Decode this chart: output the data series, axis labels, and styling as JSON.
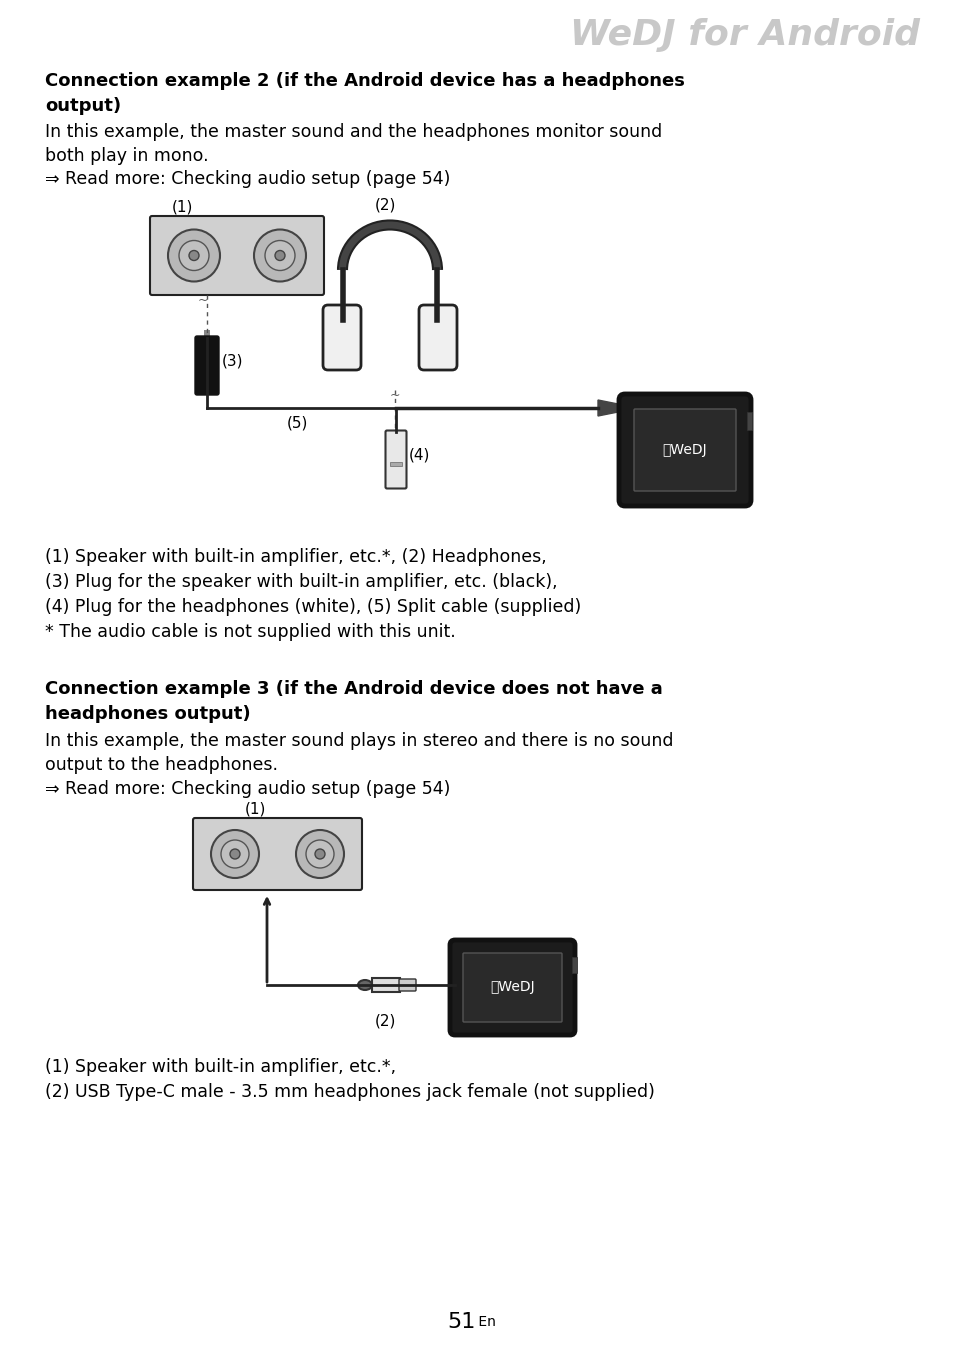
{
  "title": "WeDJ for Android",
  "title_color": "#c8c8c8",
  "title_fontsize": 26,
  "bg_color": "#ffffff",
  "heading1_line1": "Connection example 2 (if the Android device has a headphones",
  "heading1_line2": "output)",
  "body1a_line1": "In this example, the master sound and the headphones monitor sound",
  "body1a_line2": "both play in mono.",
  "body1b": "⇒ Read more: Checking audio setup (page 54)",
  "caption1a": "(1) Speaker with built-in amplifier, etc.*, (2) Headphones,",
  "caption1b": "(3) Plug for the speaker with built-in amplifier, etc. (black),",
  "caption1c": "(4) Plug for the headphones (white), (5) Split cable (supplied)",
  "caption1d": "* The audio cable is not supplied with this unit.",
  "heading2_line1": "Connection example 3 (if the Android device does not have a",
  "heading2_line2": "headphones output)",
  "body2a_line1": "In this example, the master sound plays in stereo and there is no sound",
  "body2a_line2": "output to the headphones.",
  "body2b": "⇒ Read more: Checking audio setup (page 54)",
  "caption2a": "(1) Speaker with built-in amplifier, etc.*,",
  "caption2b": "(2) USB Type-C male - 3.5 mm headphones jack female (not supplied)",
  "page_number": "51",
  "page_suffix": " En"
}
